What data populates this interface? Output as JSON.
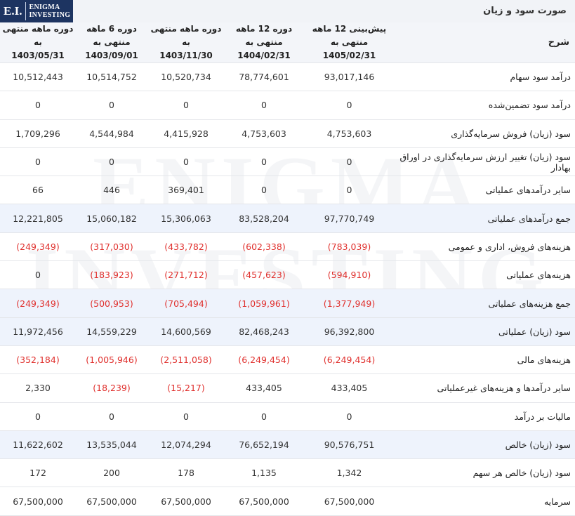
{
  "header": {
    "logo": {
      "mark": "E.I.",
      "name": [
        "Enigma",
        "Investing"
      ]
    },
    "title": "صورت سود و زیان"
  },
  "watermark": [
    "ENIGMA",
    "INVESTING"
  ],
  "table": {
    "columns": [
      {
        "title": "شرح"
      },
      {
        "title": "پیش‌بینی 12 ماهه منتهی به",
        "date": "1405/02/31"
      },
      {
        "title": "دوره 12 ماهه منتهی به",
        "date": "1404/02/31"
      },
      {
        "title": "دوره ماهه منتهی به",
        "date": "1403/11/30"
      },
      {
        "title": "دوره 6 ماهه منتهی به",
        "date": "1403/09/01"
      },
      {
        "title": "دوره ماهه منتهی به",
        "date": "1403/05/31"
      }
    ],
    "rows": [
      {
        "label": "درآمد سود سهام",
        "values": [
          "93,017,146",
          "78,774,601",
          "10,520,734",
          "10,514,752",
          "10,512,443"
        ]
      },
      {
        "label": "درآمد سود تضمین‌شده",
        "values": [
          "0",
          "0",
          "0",
          "0",
          "0"
        ]
      },
      {
        "label": "سود (زیان) فروش سرمایه‌گذاری",
        "values": [
          "4,753,603",
          "4,753,603",
          "4,415,928",
          "4,544,984",
          "1,709,296"
        ]
      },
      {
        "label": "سود (زیان) تغییر ارزش سرمایه‌گذاری در اوراق بهادار",
        "values": [
          "0",
          "0",
          "0",
          "0",
          "0"
        ]
      },
      {
        "label": "سایر درآمدهای عملیاتی",
        "values": [
          "0",
          "0",
          "369,401",
          "446",
          "66"
        ]
      },
      {
        "label": "جمع درآمدهای عملیاتی",
        "values": [
          "97,770,749",
          "83,528,204",
          "15,306,063",
          "15,060,182",
          "12,221,805"
        ],
        "highlight": true
      },
      {
        "label": "هزینه‌های فروش، اداری و عمومی",
        "values": [
          "(783,039)",
          "(602,338)",
          "(433,782)",
          "(317,030)",
          "(249,349)"
        ]
      },
      {
        "label": "هزینه‌های عملیاتی",
        "values": [
          "(594,910)",
          "(457,623)",
          "(271,712)",
          "(183,923)",
          "0"
        ]
      },
      {
        "label": "جمع هزینه‌های عملیاتی",
        "values": [
          "(1,377,949)",
          "(1,059,961)",
          "(705,494)",
          "(500,953)",
          "(249,349)"
        ],
        "highlight": true
      },
      {
        "label": "سود (زیان) عملیاتی",
        "values": [
          "96,392,800",
          "82,468,243",
          "14,600,569",
          "14,559,229",
          "11,972,456"
        ],
        "highlight": true
      },
      {
        "label": "هزینه‌های مالی",
        "values": [
          "(6,249,454)",
          "(6,249,454)",
          "(2,511,058)",
          "(1,005,946)",
          "(352,184)"
        ]
      },
      {
        "label": "سایر درآمدها و هزینه‌های غیرعملیاتی",
        "values": [
          "433,405",
          "433,405",
          "(15,217)",
          "(18,239)",
          "2,330"
        ]
      },
      {
        "label": "مالیات بر درآمد",
        "values": [
          "0",
          "0",
          "0",
          "0",
          "0"
        ]
      },
      {
        "label": "سود (زیان) خالص",
        "values": [
          "90,576,751",
          "76,652,194",
          "12,074,294",
          "13,535,044",
          "11,622,602"
        ],
        "highlight": true
      },
      {
        "label": "سود (زیان) خالص هر سهم",
        "values": [
          "1,342",
          "1,135",
          "178",
          "200",
          "172"
        ]
      },
      {
        "label": "سرمایه",
        "values": [
          "67,500,000",
          "67,500,000",
          "67,500,000",
          "67,500,000",
          "67,500,000"
        ]
      }
    ]
  }
}
